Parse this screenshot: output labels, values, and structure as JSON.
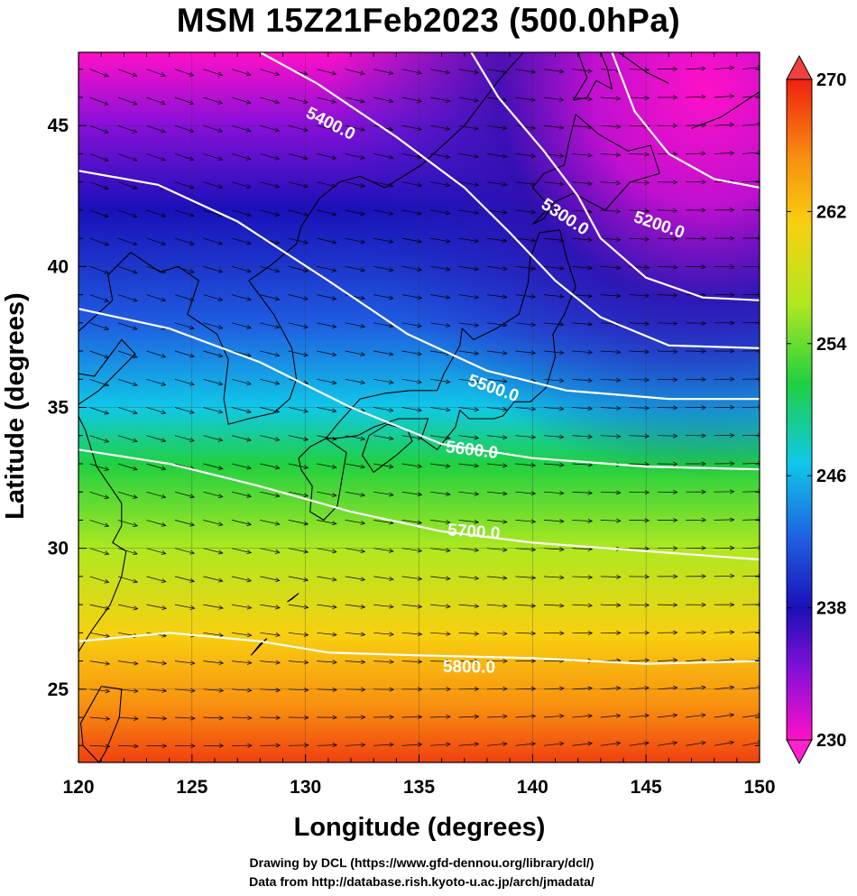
{
  "title": "MSM 15Z21Feb2023 (500.0hPa)",
  "map": {
    "xlabel": "Longitude (degrees)",
    "ylabel": "Latitude  (degrees)",
    "xlim": [
      120,
      150
    ],
    "ylim": [
      22.4,
      47.6
    ],
    "xticks": [
      "120",
      "125",
      "130",
      "135",
      "140",
      "145",
      "150"
    ],
    "yticks": [
      "25",
      "30",
      "35",
      "40",
      "45"
    ],
    "contour_labels": [
      "5200.0",
      "5300.0",
      "5400.0",
      "5500.0",
      "5600.0",
      "5700.0",
      "5800.0"
    ],
    "fill_colors": {
      "magenta": "#ff10c8",
      "purple": "#8a10d8",
      "dark_blue": "#1a10b8",
      "blue": "#1f5be0",
      "cyan": "#10c8e8",
      "green": "#20d040",
      "yellow_green": "#b0e820",
      "yellow": "#f8d010",
      "orange": "#f89010",
      "red_orange": "#f04010"
    }
  },
  "colorbar": {
    "labels": [
      "270",
      "262",
      "254",
      "246",
      "238",
      "230"
    ],
    "top_color": "#f04040",
    "bottom_color": "#ff20d0"
  },
  "credits": {
    "line1": "Drawing by DCL (https://www.gfd-dennou.org/library/dcl/)",
    "line2": "Data from http://database.rish.kyoto-u.ac.jp/arch/jmadata/"
  }
}
